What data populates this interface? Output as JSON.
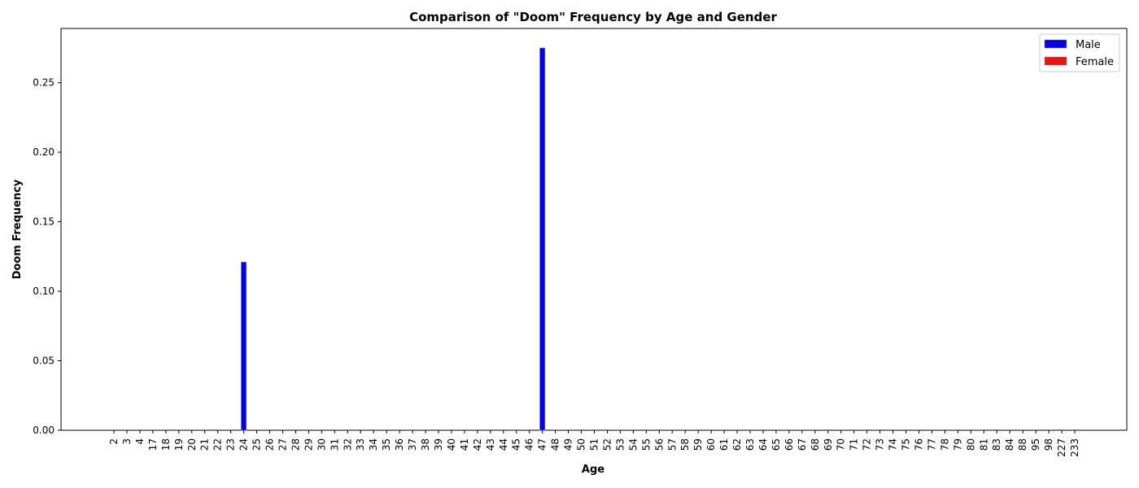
{
  "chart_data": {
    "type": "bar",
    "title": "Comparison of \"Doom\" Frequency by Age and Gender",
    "xlabel": "Age",
    "ylabel": "Doom Frequency",
    "categories": [
      "2",
      "3",
      "4",
      "17",
      "18",
      "19",
      "20",
      "21",
      "22",
      "23",
      "24",
      "25",
      "26",
      "27",
      "28",
      "29",
      "30",
      "31",
      "32",
      "33",
      "34",
      "35",
      "36",
      "37",
      "38",
      "39",
      "40",
      "41",
      "42",
      "43",
      "44",
      "45",
      "46",
      "47",
      "48",
      "49",
      "50",
      "51",
      "52",
      "53",
      "54",
      "55",
      "56",
      "57",
      "58",
      "59",
      "60",
      "61",
      "62",
      "63",
      "64",
      "65",
      "66",
      "67",
      "68",
      "69",
      "70",
      "71",
      "72",
      "73",
      "74",
      "75",
      "76",
      "77",
      "78",
      "79",
      "80",
      "81",
      "83",
      "84",
      "88",
      "95",
      "98",
      "227",
      "233"
    ],
    "series": [
      {
        "name": "Male",
        "color": "#0000ee",
        "values": [
          0,
          0,
          0,
          0,
          0,
          0,
          0,
          0,
          0,
          0,
          0.121,
          0,
          0,
          0,
          0,
          0,
          0,
          0,
          0,
          0,
          0,
          0,
          0,
          0,
          0,
          0,
          0,
          0,
          0,
          0,
          0,
          0,
          0,
          0.275,
          0,
          0,
          0,
          0,
          0,
          0,
          0,
          0,
          0,
          0,
          0,
          0,
          0,
          0,
          0,
          0,
          0,
          0,
          0,
          0,
          0,
          0,
          0,
          0,
          0,
          0,
          0,
          0,
          0,
          0,
          0,
          0,
          0,
          0,
          0,
          0,
          0,
          0,
          0,
          0,
          0
        ]
      },
      {
        "name": "Female",
        "color": "#ee1111",
        "values": [
          0,
          0,
          0,
          0,
          0,
          0,
          0,
          0,
          0,
          0,
          0,
          0,
          0,
          0,
          0,
          0,
          0,
          0,
          0,
          0,
          0,
          0,
          0,
          0,
          0,
          0,
          0,
          0,
          0,
          0,
          0,
          0,
          0,
          0,
          0,
          0,
          0,
          0,
          0,
          0,
          0,
          0,
          0,
          0,
          0,
          0,
          0,
          0,
          0,
          0,
          0,
          0,
          0,
          0,
          0,
          0,
          0,
          0,
          0,
          0,
          0,
          0,
          0,
          0,
          0,
          0,
          0,
          0,
          0,
          0,
          0,
          0,
          0,
          0,
          0
        ]
      }
    ],
    "ylim": [
      0,
      0.289
    ],
    "yticks": [
      "0.00",
      "0.05",
      "0.10",
      "0.15",
      "0.20",
      "0.25"
    ],
    "ytick_values": [
      0,
      0.05,
      0.1,
      0.15,
      0.2,
      0.25
    ],
    "grid": false,
    "legend_position": "top-right"
  }
}
